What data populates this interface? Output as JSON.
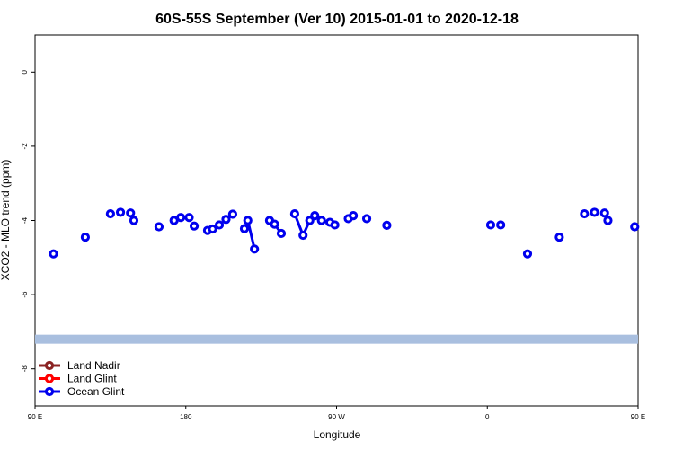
{
  "chart_data": {
    "type": "line",
    "title": "60S-55S September (Ver 10)   2015-01-01 to 2020-12-18",
    "xlabel": "Longitude",
    "ylabel": "XCO2 - MLO trend (ppm)",
    "xlim": [
      90,
      450
    ],
    "ylim": [
      -9,
      1
    ],
    "x_ticks": [
      {
        "value": 90,
        "label": "90 E"
      },
      {
        "value": 180,
        "label": "180"
      },
      {
        "value": 270,
        "label": "90 W"
      },
      {
        "value": 360,
        "label": "0"
      },
      {
        "value": 450,
        "label": "90 E"
      },
      {
        "value": 540,
        "label": "180"
      }
    ],
    "y_ticks": [
      0,
      -2,
      -4,
      -6,
      -8
    ],
    "band": {
      "y_center": -7.2,
      "color": "#a9bfdf"
    },
    "legend": {
      "position": "bottom-left",
      "entries": [
        {
          "name": "Land Nadir",
          "color": "#8b2323"
        },
        {
          "name": "Land Glint",
          "color": "#ff0000"
        },
        {
          "name": "Ocean Glint",
          "color": "#0000ee"
        }
      ]
    },
    "series": [
      {
        "name": "Ocean Glint",
        "color": "#0000ee",
        "segments": [
          [
            [
              101,
              -4.9
            ]
          ],
          [
            [
              120,
              -4.45
            ]
          ],
          [
            [
              135,
              -3.82
            ]
          ],
          [
            [
              141,
              -3.78
            ]
          ],
          [
            [
              147,
              -3.8
            ]
          ],
          [
            [
              149,
              -4.0
            ]
          ],
          [
            [
              164,
              -4.17
            ]
          ],
          [
            [
              173,
              -4.0
            ]
          ],
          [
            [
              177,
              -3.92
            ]
          ],
          [
            [
              182,
              -3.92
            ]
          ],
          [
            [
              185,
              -4.15
            ]
          ],
          [
            [
              193,
              -4.27
            ]
          ],
          [
            [
              196,
              -4.23
            ]
          ],
          [
            [
              200,
              -4.12
            ]
          ],
          [
            [
              204,
              -3.97
            ]
          ],
          [
            [
              208,
              -3.83
            ]
          ],
          [
            [
              215,
              -4.22
            ]
          ],
          [
            [
              217,
              -4.0
            ],
            [
              221,
              -4.77
            ]
          ],
          [
            [
              230,
              -4.0
            ],
            [
              233,
              -4.1
            ],
            [
              237,
              -4.35
            ]
          ],
          [
            [
              245,
              -3.82
            ],
            [
              250,
              -4.4
            ],
            [
              254,
              -4.0
            ],
            [
              257,
              -3.87
            ]
          ],
          [
            [
              261,
              -4.0
            ]
          ],
          [
            [
              266,
              -4.05
            ]
          ],
          [
            [
              269,
              -4.12
            ]
          ],
          [
            [
              277,
              -3.95
            ]
          ],
          [
            [
              280,
              -3.87
            ]
          ],
          [
            [
              288,
              -3.95
            ]
          ],
          [
            [
              300,
              -4.13
            ]
          ],
          [
            [
              362,
              -4.12
            ]
          ],
          [
            [
              368,
              -4.12
            ]
          ],
          [
            [
              384,
              -4.9
            ]
          ],
          [
            [
              403,
              -4.45
            ]
          ],
          [
            [
              418,
              -3.82
            ]
          ],
          [
            [
              424,
              -3.78
            ]
          ],
          [
            [
              430,
              -3.8
            ]
          ],
          [
            [
              432,
              -4.0
            ]
          ],
          [
            [
              448,
              -4.17
            ]
          ]
        ]
      }
    ]
  }
}
